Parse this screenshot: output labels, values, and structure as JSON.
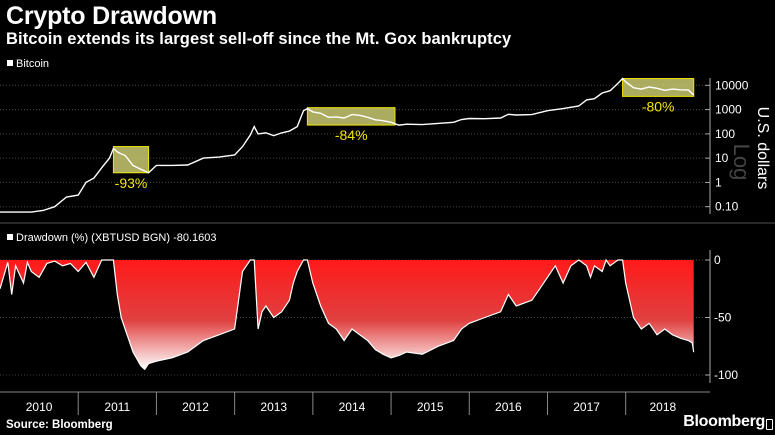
{
  "header": {
    "title": "Crypto Drawdown",
    "subtitle": "Bitcoin extends its largest sell-off since the Mt. Gox bankruptcy"
  },
  "footer": {
    "source": "Source: Bloomberg",
    "logo": "Bloomberg"
  },
  "colors": {
    "background": "#000000",
    "price_line": "#ffffff",
    "highlight_fill": "#e6e680",
    "highlight_text": "#f2e600",
    "drawdown_top": "#ff1a1a",
    "drawdown_bottom": "#ffffff"
  },
  "chart_data": [
    {
      "type": "line",
      "legend": "Bitcoin",
      "ylabel": "U.S. dollars",
      "yscale": "log",
      "yscale_label": "Log",
      "ylim": [
        0.05,
        20000
      ],
      "yticks": [
        0.1,
        1,
        10,
        100,
        1000,
        10000
      ],
      "ytick_labels": [
        "0.10",
        "1",
        "10",
        "100",
        "1000",
        "10000"
      ],
      "xlim": [
        2010.0,
        2018.95
      ],
      "x": [
        2010.0,
        2010.2,
        2010.4,
        2010.55,
        2010.7,
        2010.85,
        2011.0,
        2011.1,
        2011.2,
        2011.3,
        2011.4,
        2011.45,
        2011.5,
        2011.55,
        2011.6,
        2011.7,
        2011.8,
        2011.9,
        2012.0,
        2012.2,
        2012.4,
        2012.6,
        2012.8,
        2013.0,
        2013.1,
        2013.2,
        2013.25,
        2013.3,
        2013.4,
        2013.5,
        2013.6,
        2013.7,
        2013.8,
        2013.88,
        2013.93,
        2014.0,
        2014.1,
        2014.2,
        2014.3,
        2014.4,
        2014.5,
        2014.6,
        2014.7,
        2014.8,
        2014.9,
        2015.0,
        2015.1,
        2015.2,
        2015.4,
        2015.6,
        2015.8,
        2015.9,
        2016.0,
        2016.2,
        2016.4,
        2016.5,
        2016.6,
        2016.8,
        2017.0,
        2017.2,
        2017.4,
        2017.5,
        2017.6,
        2017.7,
        2017.8,
        2017.9,
        2017.96,
        2018.0,
        2018.1,
        2018.2,
        2018.3,
        2018.4,
        2018.5,
        2018.6,
        2018.7,
        2018.8,
        2018.87
      ],
      "y": [
        0.06,
        0.06,
        0.06,
        0.07,
        0.1,
        0.25,
        0.3,
        1,
        1.5,
        4,
        10,
        25,
        18,
        15,
        13,
        5,
        3.5,
        2.5,
        5,
        5,
        5.2,
        10,
        11,
        13.5,
        30,
        90,
        200,
        100,
        110,
        85,
        110,
        130,
        200,
        900,
        1100,
        800,
        700,
        480,
        500,
        450,
        620,
        580,
        480,
        380,
        350,
        300,
        230,
        250,
        240,
        270,
        300,
        390,
        430,
        420,
        450,
        640,
        600,
        620,
        900,
        1100,
        1400,
        2500,
        2800,
        4800,
        6000,
        12000,
        19000,
        14000,
        8000,
        7000,
        8500,
        7500,
        6200,
        7000,
        6500,
        6400,
        4000
      ],
      "annotations": [
        {
          "label": "-93%",
          "x_range": [
            2011.45,
            2011.9
          ],
          "y_range": [
            2.5,
            30
          ]
        },
        {
          "label": "-84%",
          "x_range": [
            2013.93,
            2015.05
          ],
          "y_range": [
            230,
            1200
          ]
        },
        {
          "label": "-80%",
          "x_range": [
            2017.96,
            2018.87
          ],
          "y_range": [
            3500,
            19000
          ]
        }
      ]
    },
    {
      "type": "area",
      "legend": "Drawdown (%) (XBTUSD BGN) -80.1603",
      "ylim": [
        -105,
        3
      ],
      "yticks": [
        0,
        -50,
        -100
      ],
      "ytick_labels": [
        "0",
        "-50",
        "-100"
      ],
      "xlim": [
        2010.0,
        2018.95
      ],
      "x": [
        2010.0,
        2010.1,
        2010.15,
        2010.2,
        2010.3,
        2010.35,
        2010.4,
        2010.5,
        2010.6,
        2010.7,
        2010.8,
        2010.9,
        2011.0,
        2011.1,
        2011.2,
        2011.3,
        2011.4,
        2011.45,
        2011.5,
        2011.55,
        2011.6,
        2011.7,
        2011.8,
        2011.85,
        2011.9,
        2012.0,
        2012.2,
        2012.4,
        2012.6,
        2012.8,
        2013.0,
        2013.1,
        2013.15,
        2013.2,
        2013.25,
        2013.3,
        2013.35,
        2013.4,
        2013.5,
        2013.6,
        2013.7,
        2013.75,
        2013.8,
        2013.88,
        2013.93,
        2014.0,
        2014.1,
        2014.2,
        2014.3,
        2014.4,
        2014.5,
        2014.6,
        2014.7,
        2014.8,
        2014.9,
        2015.0,
        2015.1,
        2015.2,
        2015.4,
        2015.6,
        2015.8,
        2015.9,
        2016.0,
        2016.2,
        2016.4,
        2016.5,
        2016.6,
        2016.8,
        2016.9,
        2017.0,
        2017.1,
        2017.2,
        2017.3,
        2017.4,
        2017.5,
        2017.55,
        2017.6,
        2017.7,
        2017.75,
        2017.8,
        2017.9,
        2017.96,
        2018.0,
        2018.05,
        2018.1,
        2018.2,
        2018.3,
        2018.4,
        2018.5,
        2018.6,
        2018.7,
        2018.8,
        2018.85,
        2018.87
      ],
      "y": [
        -25,
        -2,
        -30,
        -5,
        -20,
        -2,
        -10,
        -15,
        -3,
        -1,
        -5,
        -3,
        -10,
        -2,
        -15,
        0,
        0,
        0,
        -30,
        -50,
        -60,
        -80,
        -92,
        -95,
        -90,
        -88,
        -85,
        -80,
        -70,
        -65,
        -60,
        -10,
        -5,
        0,
        0,
        -60,
        -45,
        -40,
        -50,
        -45,
        -35,
        -20,
        -10,
        0,
        0,
        -20,
        -40,
        -55,
        -60,
        -70,
        -60,
        -65,
        -70,
        -78,
        -82,
        -85,
        -83,
        -80,
        -82,
        -75,
        -70,
        -60,
        -55,
        -50,
        -45,
        -30,
        -40,
        -35,
        -25,
        -15,
        -5,
        -20,
        -5,
        0,
        -5,
        -15,
        -5,
        -10,
        0,
        -5,
        0,
        0,
        -20,
        -35,
        -50,
        -60,
        -55,
        -65,
        -60,
        -65,
        -68,
        -70,
        -72,
        -80.16
      ],
      "x_categories": [
        "2010",
        "2011",
        "2012",
        "2013",
        "2014",
        "2015",
        "2016",
        "2017",
        "2018"
      ]
    }
  ]
}
